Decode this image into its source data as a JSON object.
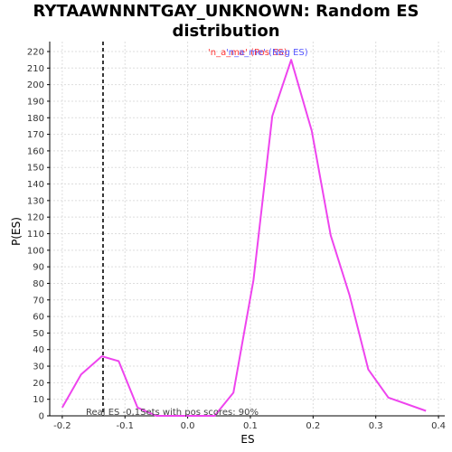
{
  "chart_data": {
    "type": "line",
    "title_lines": [
      "RYTAAWNNNTGAY_UNKNOWN: Random ES",
      "distribution"
    ],
    "xlabel": "ES",
    "ylabel": "P(ES)",
    "xlim": [
      -0.22,
      0.41
    ],
    "ylim": [
      0,
      226
    ],
    "xticks": [
      -0.2,
      -0.1,
      0.0,
      0.1,
      0.2,
      0.3,
      0.4
    ],
    "xtick_labels": [
      "-0.2",
      "-0.1",
      "0.0",
      "0.1",
      "0.2",
      "0.3",
      "0.4"
    ],
    "yticks": [
      0,
      10,
      20,
      30,
      40,
      50,
      60,
      70,
      80,
      90,
      100,
      110,
      120,
      130,
      140,
      150,
      160,
      170,
      180,
      190,
      200,
      210,
      220
    ],
    "ytick_labels": [
      "0",
      "10",
      "20",
      "30",
      "40",
      "50",
      "60",
      "70",
      "80",
      "90",
      "100",
      "110",
      "120",
      "130",
      "140",
      "150",
      "160",
      "170",
      "180",
      "190",
      "200",
      "210",
      "220"
    ],
    "grid": true,
    "legend": {
      "position": "top-center",
      "entries": [
        {
          "label": "'n_a_me' (Pos ES)",
          "color": "#ff3333"
        },
        {
          "label": "'n_a_me' (Neg ES)",
          "color": "#5555ff"
        }
      ]
    },
    "series": [
      {
        "color": "#ee44ee",
        "x": [
          -0.2,
          -0.17,
          -0.137,
          -0.11,
          -0.08,
          -0.05,
          -0.02,
          0.01,
          0.043,
          0.073,
          0.105,
          0.135,
          0.165,
          0.198,
          0.228,
          0.258,
          0.288,
          0.32,
          0.38
        ],
        "y": [
          5,
          25,
          36,
          33,
          5,
          0,
          0,
          0,
          0,
          14,
          82,
          181,
          215,
          172,
          109,
          73,
          28,
          11,
          3
        ]
      }
    ],
    "reference_line": {
      "x": -0.135,
      "style": "dashed",
      "color": "#333333"
    },
    "annotation": "Real ES -0,1Sets with pos scores: 90%"
  }
}
